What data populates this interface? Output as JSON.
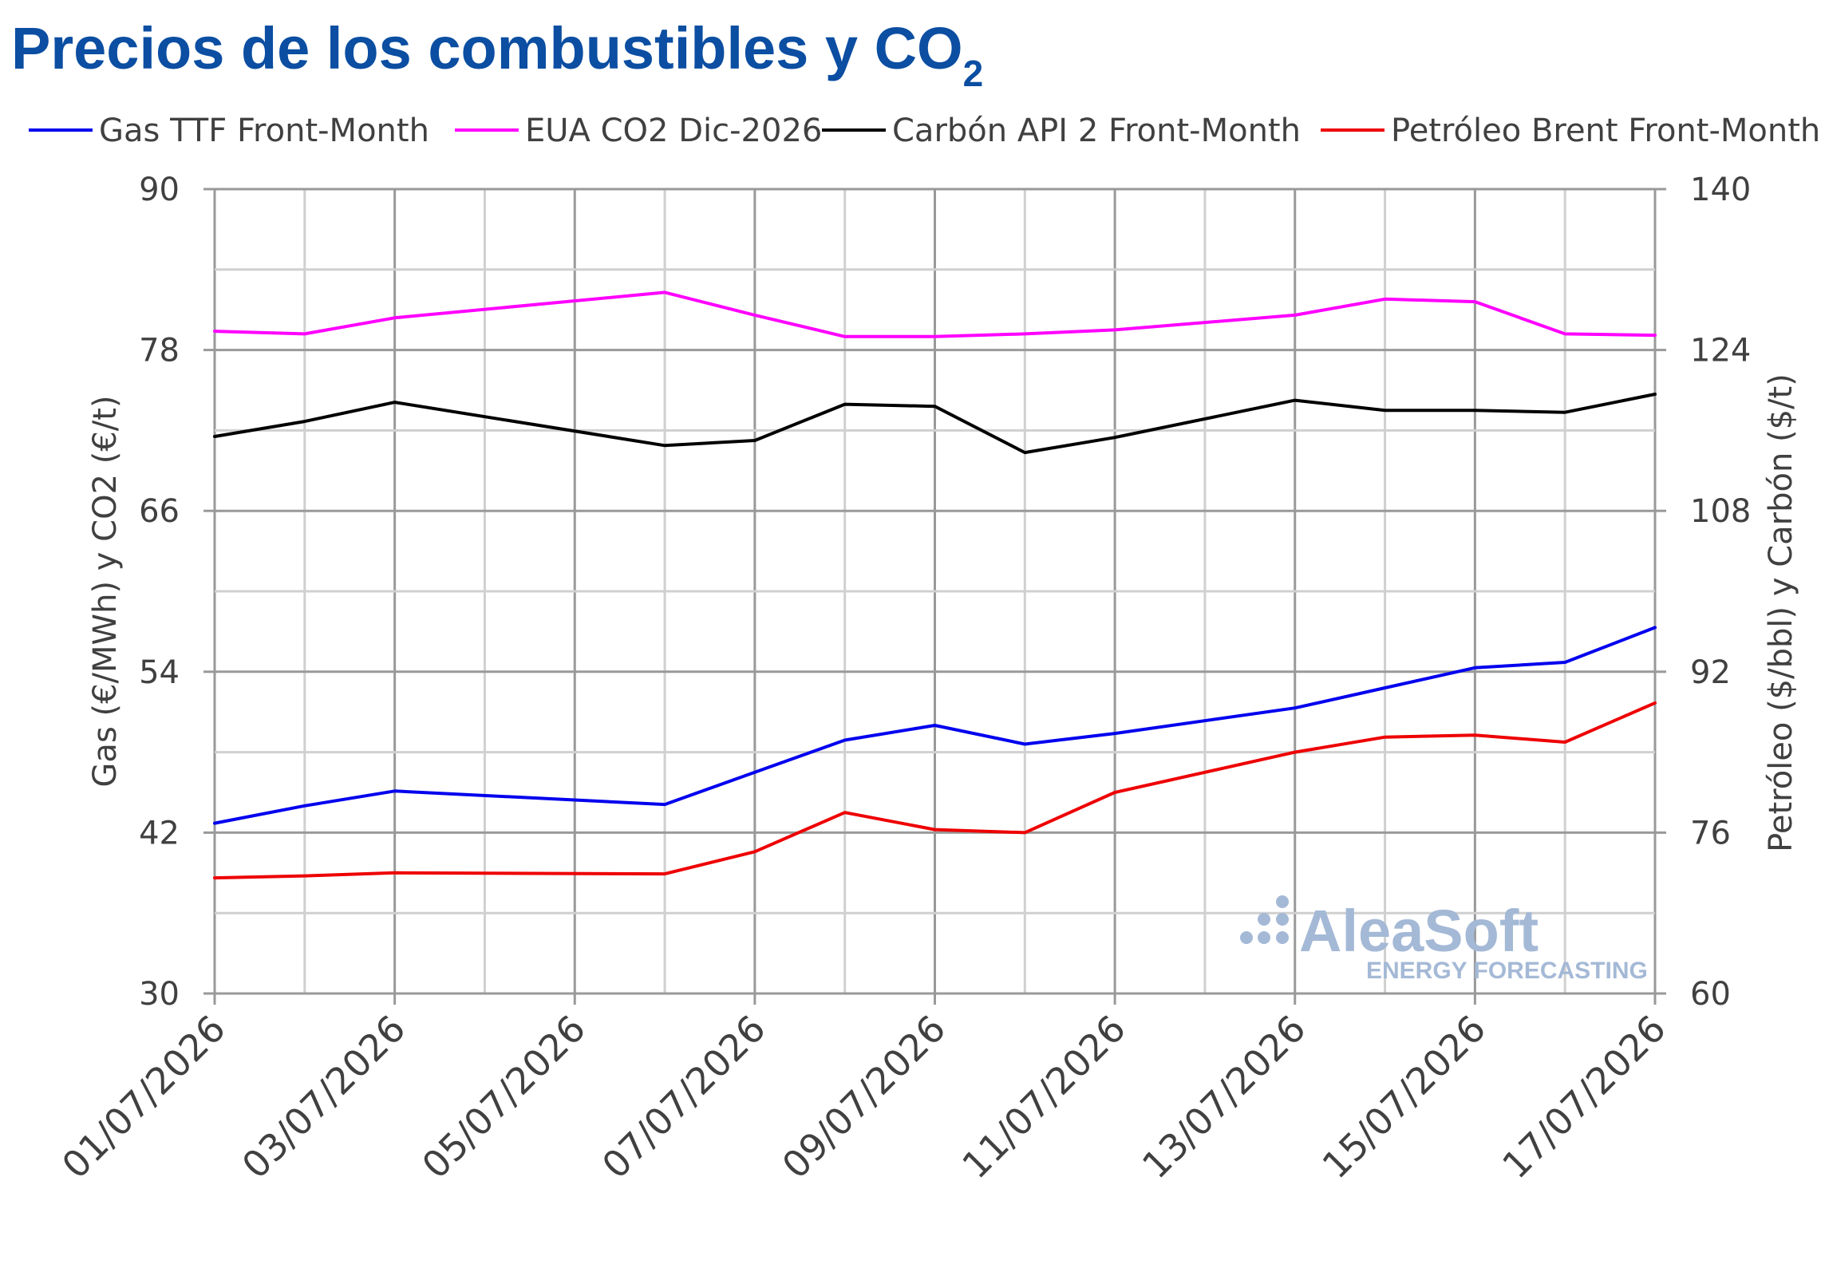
{
  "title": "Precios de los combustibles y CO",
  "title_subscript": "2",
  "watermark": {
    "brand": "AleaSoft",
    "tagline": "ENERGY FORECASTING"
  },
  "colors": {
    "title": "#0b4ea2",
    "grid": "#d0d0d0",
    "grid_major": "#999999",
    "text": "#404040",
    "watermark": "#a4b9d6"
  },
  "chart_data": {
    "type": "line",
    "x": [
      "01/07/2026",
      "02/07/2026",
      "03/07/2026",
      "06/07/2026",
      "07/07/2026",
      "08/07/2026",
      "09/07/2026",
      "10/07/2026",
      "11/07/2026",
      "13/07/2026",
      "14/07/2026",
      "15/07/2026",
      "16/07/2026",
      "17/07/2026"
    ],
    "x_tick_labels": [
      "01/07/2026",
      "03/07/2026",
      "05/07/2026",
      "07/07/2026",
      "09/07/2026",
      "11/07/2026",
      "13/07/2026",
      "15/07/2026",
      "17/07/2026"
    ],
    "x_range": [
      "01/07/2026",
      "17/07/2026"
    ],
    "y_left": {
      "label": "Gas (€/MWh) y CO2 (€/t)",
      "range": [
        30,
        90
      ],
      "ticks": [
        30,
        42,
        54,
        66,
        78,
        90
      ]
    },
    "y_right": {
      "label": "Petróleo ($/bbl) y Carbón ($/t)",
      "range": [
        60,
        140
      ],
      "ticks": [
        60,
        76,
        92,
        108,
        124,
        140
      ]
    },
    "grid": true,
    "legend_position": "top",
    "series": [
      {
        "name": "Gas TTF Front-Month",
        "axis": "left",
        "color": "#0000ee",
        "values": [
          42.7,
          44.0,
          45.1,
          44.1,
          46.5,
          48.9,
          50.0,
          48.6,
          49.4,
          51.3,
          52.8,
          54.3,
          54.7,
          57.3
        ]
      },
      {
        "name": "EUA CO2 Dic-2026",
        "axis": "left",
        "color": "#ff00ff",
        "values": [
          79.4,
          79.2,
          80.4,
          82.3,
          80.6,
          79.0,
          79.0,
          79.2,
          79.5,
          80.6,
          81.8,
          81.6,
          79.2,
          79.1
        ]
      },
      {
        "name": "Carbón API 2 Front-Month",
        "axis": "right",
        "color": "#000000",
        "values": [
          115.4,
          116.9,
          118.8,
          114.5,
          115.0,
          118.6,
          118.4,
          113.8,
          115.3,
          119.0,
          118.0,
          118.0,
          117.8,
          119.6
        ]
      },
      {
        "name": "Petróleo Brent Front-Month",
        "axis": "right",
        "color": "#ee0000",
        "values": [
          71.5,
          71.7,
          72.0,
          71.9,
          74.1,
          78.0,
          76.3,
          76.0,
          80.0,
          84.0,
          85.5,
          85.7,
          85.0,
          88.9
        ]
      }
    ]
  }
}
